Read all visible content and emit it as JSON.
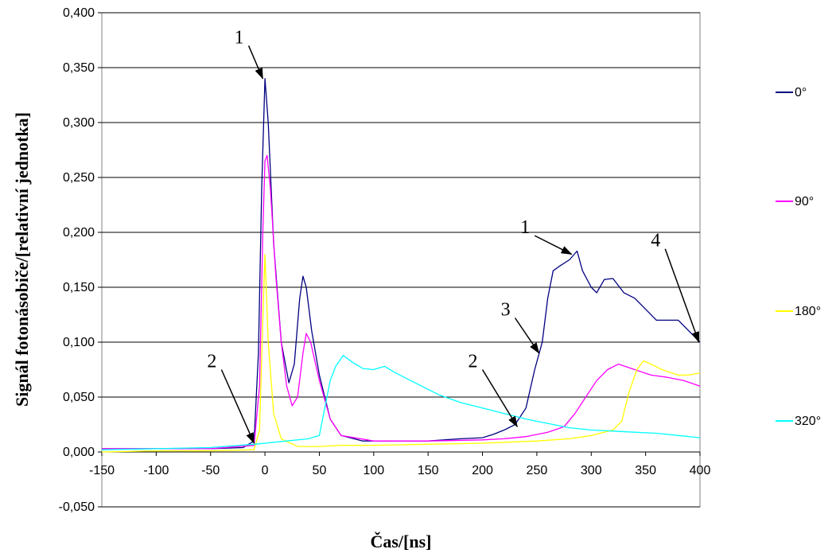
{
  "chart_data": {
    "type": "line",
    "xlabel": "Čas/[ns]",
    "ylabel": "Signál fotonásobiče/[relativní jednotka]",
    "xlim": [
      -150,
      400
    ],
    "ylim": [
      -0.05,
      0.4
    ],
    "x_ticks": [
      "-150",
      "-100",
      "-50",
      "0",
      "50",
      "100",
      "150",
      "200",
      "250",
      "300",
      "350",
      "400"
    ],
    "y_ticks": [
      "-0,050",
      "0,000",
      "0,050",
      "0,100",
      "0,150",
      "0,200",
      "0,250",
      "0,300",
      "0,350",
      "0,400"
    ],
    "grid": true,
    "legend_position": "right",
    "series": [
      {
        "name": "0°",
        "color": "#000080",
        "points": [
          [
            -150,
            0.003
          ],
          [
            -100,
            0.003
          ],
          [
            -50,
            0.003
          ],
          [
            -20,
            0.004
          ],
          [
            -10,
            0.01
          ],
          [
            -6,
            0.09
          ],
          [
            -3,
            0.24
          ],
          [
            0,
            0.34
          ],
          [
            3,
            0.3
          ],
          [
            8,
            0.19
          ],
          [
            15,
            0.1
          ],
          [
            22,
            0.063
          ],
          [
            27,
            0.08
          ],
          [
            32,
            0.14
          ],
          [
            35,
            0.16
          ],
          [
            38,
            0.15
          ],
          [
            43,
            0.11
          ],
          [
            50,
            0.07
          ],
          [
            60,
            0.03
          ],
          [
            70,
            0.015
          ],
          [
            90,
            0.01
          ],
          [
            120,
            0.01
          ],
          [
            150,
            0.01
          ],
          [
            180,
            0.012
          ],
          [
            200,
            0.013
          ],
          [
            210,
            0.016
          ],
          [
            220,
            0.02
          ],
          [
            230,
            0.025
          ],
          [
            240,
            0.04
          ],
          [
            248,
            0.075
          ],
          [
            255,
            0.1
          ],
          [
            260,
            0.14
          ],
          [
            265,
            0.165
          ],
          [
            272,
            0.17
          ],
          [
            280,
            0.175
          ],
          [
            287,
            0.183
          ],
          [
            292,
            0.165
          ],
          [
            300,
            0.15
          ],
          [
            305,
            0.145
          ],
          [
            312,
            0.157
          ],
          [
            320,
            0.158
          ],
          [
            330,
            0.145
          ],
          [
            340,
            0.14
          ],
          [
            350,
            0.13
          ],
          [
            360,
            0.12
          ],
          [
            370,
            0.12
          ],
          [
            380,
            0.12
          ],
          [
            390,
            0.11
          ],
          [
            400,
            0.1
          ]
        ]
      },
      {
        "name": "90°",
        "color": "#ff00ff",
        "points": [
          [
            -150,
            0.003
          ],
          [
            -50,
            0.003
          ],
          [
            -10,
            0.006
          ],
          [
            -5,
            0.06
          ],
          [
            -2,
            0.2
          ],
          [
            0,
            0.265
          ],
          [
            2,
            0.27
          ],
          [
            5,
            0.24
          ],
          [
            10,
            0.16
          ],
          [
            15,
            0.1
          ],
          [
            20,
            0.06
          ],
          [
            25,
            0.042
          ],
          [
            30,
            0.05
          ],
          [
            35,
            0.09
          ],
          [
            38,
            0.108
          ],
          [
            42,
            0.1
          ],
          [
            50,
            0.065
          ],
          [
            60,
            0.03
          ],
          [
            70,
            0.015
          ],
          [
            100,
            0.01
          ],
          [
            150,
            0.01
          ],
          [
            200,
            0.011
          ],
          [
            220,
            0.012
          ],
          [
            240,
            0.014
          ],
          [
            260,
            0.018
          ],
          [
            275,
            0.023
          ],
          [
            285,
            0.035
          ],
          [
            295,
            0.05
          ],
          [
            305,
            0.065
          ],
          [
            315,
            0.075
          ],
          [
            325,
            0.08
          ],
          [
            340,
            0.075
          ],
          [
            355,
            0.07
          ],
          [
            370,
            0.068
          ],
          [
            385,
            0.065
          ],
          [
            400,
            0.06
          ]
        ]
      },
      {
        "name": "180°",
        "color": "#ffff00",
        "points": [
          [
            -150,
            0.0
          ],
          [
            -100,
            0.001
          ],
          [
            -50,
            0.001
          ],
          [
            -10,
            0.002
          ],
          [
            -5,
            0.02
          ],
          [
            -2,
            0.12
          ],
          [
            0,
            0.18
          ],
          [
            3,
            0.1
          ],
          [
            8,
            0.035
          ],
          [
            15,
            0.012
          ],
          [
            30,
            0.005
          ],
          [
            50,
            0.005
          ],
          [
            70,
            0.006
          ],
          [
            100,
            0.006
          ],
          [
            150,
            0.007
          ],
          [
            200,
            0.008
          ],
          [
            250,
            0.01
          ],
          [
            280,
            0.012
          ],
          [
            300,
            0.015
          ],
          [
            320,
            0.02
          ],
          [
            328,
            0.028
          ],
          [
            335,
            0.055
          ],
          [
            342,
            0.075
          ],
          [
            348,
            0.083
          ],
          [
            355,
            0.08
          ],
          [
            365,
            0.075
          ],
          [
            380,
            0.07
          ],
          [
            390,
            0.07
          ],
          [
            400,
            0.072
          ]
        ]
      },
      {
        "name": "320°",
        "color": "#00ffff",
        "points": [
          [
            -150,
            0.002
          ],
          [
            -100,
            0.003
          ],
          [
            -50,
            0.004
          ],
          [
            -10,
            0.007
          ],
          [
            0,
            0.008
          ],
          [
            20,
            0.01
          ],
          [
            40,
            0.012
          ],
          [
            50,
            0.015
          ],
          [
            55,
            0.04
          ],
          [
            60,
            0.065
          ],
          [
            65,
            0.078
          ],
          [
            72,
            0.088
          ],
          [
            80,
            0.082
          ],
          [
            90,
            0.076
          ],
          [
            100,
            0.075
          ],
          [
            110,
            0.078
          ],
          [
            120,
            0.072
          ],
          [
            140,
            0.062
          ],
          [
            160,
            0.052
          ],
          [
            180,
            0.045
          ],
          [
            200,
            0.04
          ],
          [
            220,
            0.035
          ],
          [
            240,
            0.03
          ],
          [
            260,
            0.026
          ],
          [
            280,
            0.022
          ],
          [
            300,
            0.02
          ],
          [
            320,
            0.019
          ],
          [
            340,
            0.018
          ],
          [
            360,
            0.017
          ],
          [
            380,
            0.015
          ],
          [
            400,
            0.013
          ]
        ]
      }
    ],
    "annotations": [
      {
        "text": "1",
        "x": -15,
        "y": 0.37,
        "tx": -2,
        "ty": 0.34
      },
      {
        "text": "2",
        "x": -40,
        "y": 0.075,
        "tx": -10,
        "ty": 0.008
      },
      {
        "text": "1",
        "x": 248,
        "y": 0.197,
        "tx": 282,
        "ty": 0.18
      },
      {
        "text": "3",
        "x": 230,
        "y": 0.122,
        "tx": 252,
        "ty": 0.09
      },
      {
        "text": "2",
        "x": 200,
        "y": 0.075,
        "tx": 232,
        "ty": 0.023
      },
      {
        "text": "4",
        "x": 368,
        "y": 0.185,
        "tx": 399,
        "ty": 0.1
      }
    ]
  }
}
